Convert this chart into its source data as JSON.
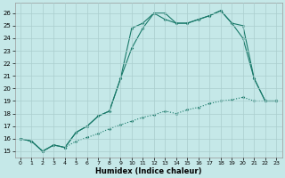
{
  "xlabel": "Humidex (Indice chaleur)",
  "bg_color": "#c5e8e8",
  "line_color": "#1a7a6a",
  "grid_color": "#aacece",
  "xlim": [
    -0.5,
    23.5
  ],
  "ylim": [
    14.5,
    26.8
  ],
  "xticks": [
    0,
    1,
    2,
    3,
    4,
    5,
    6,
    7,
    8,
    9,
    10,
    11,
    12,
    13,
    14,
    15,
    16,
    17,
    18,
    19,
    20,
    21,
    22,
    23
  ],
  "yticks": [
    15,
    16,
    17,
    18,
    19,
    20,
    21,
    22,
    23,
    24,
    25,
    26
  ],
  "line1_x": [
    0,
    1,
    2,
    3,
    4,
    5,
    6,
    7,
    8,
    9,
    10,
    11,
    12,
    13,
    14,
    15,
    16,
    17,
    18,
    19,
    20,
    21,
    22,
    23
  ],
  "line1_y": [
    16.0,
    15.8,
    15.0,
    15.5,
    15.3,
    15.8,
    16.1,
    16.4,
    16.8,
    17.1,
    17.4,
    17.7,
    17.9,
    18.2,
    18.0,
    18.3,
    18.5,
    18.8,
    19.0,
    19.1,
    19.3,
    19.0,
    19.0,
    19.0
  ],
  "line2_x": [
    0,
    1,
    2,
    3,
    4,
    5,
    6,
    7,
    8,
    9,
    10,
    11,
    12,
    13,
    14,
    15,
    16,
    17,
    18,
    19,
    20,
    21,
    22,
    23
  ],
  "line2_y": [
    16.0,
    15.8,
    15.0,
    15.5,
    15.3,
    16.5,
    17.0,
    17.8,
    18.2,
    20.8,
    24.8,
    25.2,
    26.0,
    25.5,
    25.2,
    25.2,
    25.5,
    25.8,
    26.2,
    25.2,
    24.0,
    20.8,
    19.0,
    19.0
  ],
  "line3_x": [
    0,
    1,
    2,
    3,
    4,
    5,
    6,
    7,
    8,
    9,
    10,
    11,
    12,
    13,
    14,
    15,
    16,
    17,
    18,
    19,
    20,
    21,
    22,
    23
  ],
  "line3_y": [
    16.0,
    15.8,
    15.0,
    15.5,
    15.3,
    16.5,
    17.0,
    17.8,
    18.2,
    20.8,
    23.2,
    24.8,
    26.0,
    26.0,
    25.2,
    25.2,
    25.5,
    25.8,
    26.2,
    25.2,
    25.0,
    20.8,
    19.0,
    19.0
  ]
}
